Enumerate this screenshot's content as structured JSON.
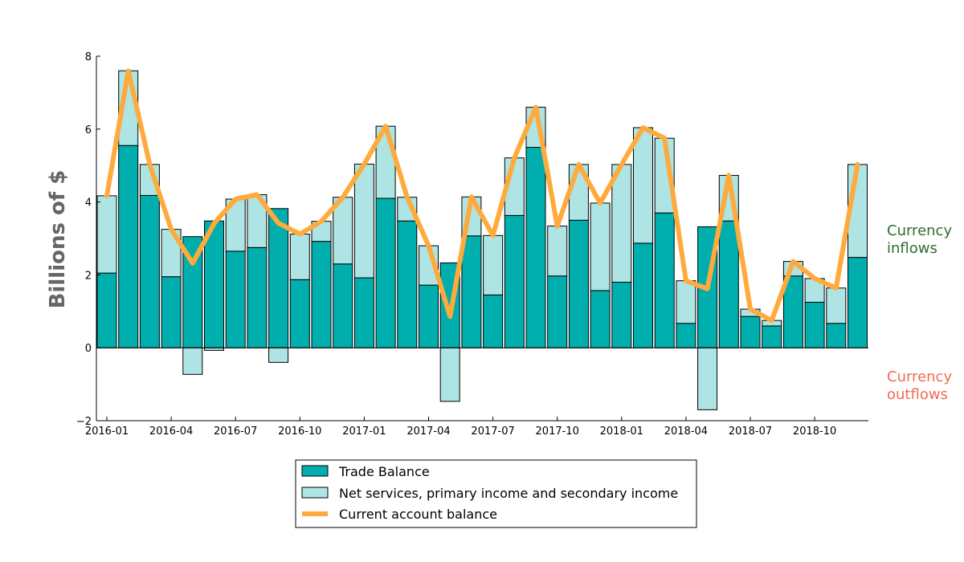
{
  "chart_data": {
    "type": "bar",
    "title": "",
    "xlabel": "",
    "ylabel": "Billions of $",
    "ylim": [
      -2,
      8
    ],
    "yticks": [
      "−2",
      "0",
      "2",
      "4",
      "6",
      "8"
    ],
    "ytick_values": [
      -2,
      0,
      2,
      4,
      6,
      8
    ],
    "xtick_labels": [
      "2016-01",
      "2016-04",
      "2016-07",
      "2016-10",
      "2017-01",
      "2017-04",
      "2017-07",
      "2017-10",
      "2018-01",
      "2018-04",
      "2018-07",
      "2018-10"
    ],
    "xtick_index": [
      0,
      3,
      6,
      9,
      12,
      15,
      18,
      21,
      24,
      27,
      30,
      33
    ],
    "categories": [
      "2016-01",
      "2016-02",
      "2016-03",
      "2016-04",
      "2016-05",
      "2016-06",
      "2016-07",
      "2016-08",
      "2016-09",
      "2016-10",
      "2016-11",
      "2016-12",
      "2017-01",
      "2017-02",
      "2017-03",
      "2017-04",
      "2017-05",
      "2017-06",
      "2017-07",
      "2017-08",
      "2017-09",
      "2017-10",
      "2017-11",
      "2017-12",
      "2018-01",
      "2018-02",
      "2018-03",
      "2018-04",
      "2018-05",
      "2018-06",
      "2018-07",
      "2018-08",
      "2018-09",
      "2018-10",
      "2018-11",
      "2018-12"
    ],
    "series": [
      {
        "name": "Trade Balance",
        "color": "#00aeae",
        "values": [
          2.05,
          5.55,
          4.18,
          1.95,
          3.05,
          3.48,
          2.65,
          2.75,
          3.82,
          1.87,
          2.92,
          2.3,
          1.92,
          4.1,
          3.48,
          1.72,
          2.33,
          3.07,
          1.45,
          3.63,
          5.5,
          1.97,
          3.5,
          1.57,
          1.8,
          2.87,
          3.7,
          0.67,
          3.32,
          3.48,
          0.86,
          0.6,
          1.97,
          1.25,
          0.67,
          2.48
        ]
      },
      {
        "name": "Net services, primary income and secondary income",
        "color": "#aee4e4",
        "values": [
          2.12,
          2.05,
          0.85,
          1.3,
          -0.73,
          -0.07,
          1.43,
          1.45,
          -0.4,
          1.25,
          0.55,
          1.83,
          3.12,
          1.98,
          0.65,
          1.08,
          -1.47,
          1.07,
          1.63,
          1.58,
          1.1,
          1.37,
          1.53,
          2.4,
          3.23,
          3.17,
          2.05,
          1.17,
          -1.7,
          1.25,
          0.2,
          0.15,
          0.4,
          0.65,
          0.97,
          2.55
        ]
      },
      {
        "name": "Current account balance",
        "color": "#ffaa3c",
        "values": [
          4.17,
          7.6,
          5.03,
          3.25,
          2.32,
          3.41,
          4.08,
          4.2,
          3.42,
          3.12,
          3.47,
          4.13,
          5.04,
          6.08,
          4.13,
          2.8,
          0.86,
          4.14,
          3.08,
          5.21,
          6.6,
          3.34,
          5.03,
          3.97,
          5.03,
          6.04,
          5.75,
          1.84,
          1.62,
          4.73,
          1.06,
          0.75,
          2.37,
          1.9,
          1.64,
          5.03
        ]
      }
    ],
    "annotations": [
      {
        "lines": [
          "Currency",
          "inflows"
        ],
        "color": "#2d6e2d"
      },
      {
        "lines": [
          "Currency",
          "outflows"
        ],
        "color": "#f26a56"
      }
    ],
    "legend_position": "bottom-center"
  }
}
